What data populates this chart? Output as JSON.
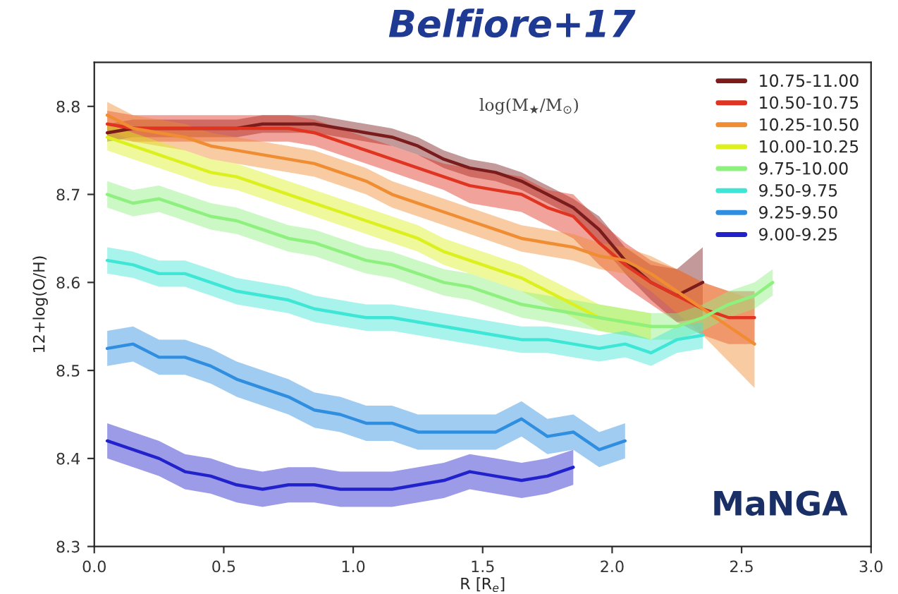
{
  "chart_data": {
    "type": "line",
    "title": "Belfiore+17",
    "xlabel": "R [R$_{e}$]",
    "ylabel": "12+log(O/H)",
    "legend_title": "log(M$_{★}$/M$_{⊙}$)",
    "xlim": [
      0,
      3
    ],
    "ylim": [
      8.3,
      8.85
    ],
    "xticks": [
      {
        "value": 0,
        "label": "0.0"
      },
      0.5,
      {
        "value": 1,
        "label": "1.0"
      },
      1.5,
      {
        "value": 2,
        "label": "2.0"
      },
      2.5,
      {
        "value": 3,
        "label": "3.0"
      }
    ],
    "yticks": [
      8.3,
      8.4,
      8.5,
      8.6,
      8.7,
      8.8
    ],
    "grid": false,
    "legend": "top right",
    "marker": "none",
    "line_style": "solid",
    "annotations": [
      "MaNGA"
    ],
    "series": [
      {
        "name": "10.75-11.00",
        "color": "#7a1c1c",
        "x": [
          0.05,
          0.15,
          0.25,
          0.35,
          0.45,
          0.55,
          0.65,
          0.75,
          0.85,
          0.95,
          1.05,
          1.15,
          1.25,
          1.35,
          1.45,
          1.55,
          1.65,
          1.75,
          1.85,
          1.95,
          2.05,
          2.15,
          2.25,
          2.35
        ],
        "values": [
          8.77,
          8.775,
          8.775,
          8.775,
          8.775,
          8.775,
          8.78,
          8.78,
          8.78,
          8.775,
          8.77,
          8.765,
          8.755,
          8.74,
          8.73,
          8.725,
          8.715,
          8.7,
          8.685,
          8.66,
          8.625,
          8.6,
          8.585,
          8.6
        ],
        "lower": [
          8.76,
          8.765,
          8.765,
          8.765,
          8.765,
          8.765,
          8.77,
          8.77,
          8.77,
          8.765,
          8.76,
          8.755,
          8.745,
          8.73,
          8.72,
          8.715,
          8.705,
          8.69,
          8.675,
          8.645,
          8.61,
          8.58,
          8.555,
          8.56
        ],
        "upper": [
          8.78,
          8.785,
          8.785,
          8.785,
          8.785,
          8.785,
          8.79,
          8.79,
          8.79,
          8.785,
          8.78,
          8.775,
          8.765,
          8.75,
          8.74,
          8.735,
          8.725,
          8.71,
          8.695,
          8.675,
          8.64,
          8.62,
          8.615,
          8.64
        ]
      },
      {
        "name": "10.50-10.75",
        "color": "#e03421",
        "x": [
          0.05,
          0.15,
          0.25,
          0.35,
          0.45,
          0.55,
          0.65,
          0.75,
          0.85,
          0.95,
          1.05,
          1.15,
          1.25,
          1.35,
          1.45,
          1.55,
          1.65,
          1.75,
          1.85,
          1.95,
          2.05,
          2.15,
          2.25,
          2.35,
          2.45,
          2.55
        ],
        "values": [
          8.78,
          8.775,
          8.775,
          8.775,
          8.775,
          8.775,
          8.775,
          8.775,
          8.77,
          8.76,
          8.75,
          8.74,
          8.73,
          8.72,
          8.71,
          8.705,
          8.7,
          8.685,
          8.675,
          8.645,
          8.62,
          8.6,
          8.585,
          8.57,
          8.56,
          8.56
        ],
        "lower": [
          8.765,
          8.76,
          8.76,
          8.76,
          8.76,
          8.76,
          8.76,
          8.76,
          8.755,
          8.745,
          8.735,
          8.725,
          8.715,
          8.705,
          8.69,
          8.685,
          8.68,
          8.665,
          8.65,
          8.62,
          8.595,
          8.575,
          8.555,
          8.54,
          8.53,
          8.53
        ],
        "upper": [
          8.795,
          8.79,
          8.79,
          8.79,
          8.79,
          8.79,
          8.79,
          8.79,
          8.785,
          8.775,
          8.765,
          8.755,
          8.745,
          8.735,
          8.73,
          8.725,
          8.72,
          8.705,
          8.7,
          8.67,
          8.645,
          8.625,
          8.615,
          8.6,
          8.59,
          8.59
        ]
      },
      {
        "name": "10.25-10.50",
        "color": "#f08c32",
        "x": [
          0.05,
          0.15,
          0.25,
          0.35,
          0.45,
          0.55,
          0.65,
          0.75,
          0.85,
          0.95,
          1.05,
          1.15,
          1.25,
          1.35,
          1.45,
          1.55,
          1.65,
          1.75,
          1.85,
          1.95,
          2.05,
          2.15,
          2.25,
          2.35,
          2.45,
          2.55
        ],
        "values": [
          8.79,
          8.775,
          8.77,
          8.765,
          8.755,
          8.75,
          8.745,
          8.74,
          8.735,
          8.725,
          8.715,
          8.7,
          8.69,
          8.68,
          8.67,
          8.66,
          8.65,
          8.645,
          8.64,
          8.63,
          8.625,
          8.61,
          8.59,
          8.57,
          8.55,
          8.53
        ],
        "lower": [
          8.775,
          8.76,
          8.755,
          8.75,
          8.74,
          8.735,
          8.73,
          8.725,
          8.72,
          8.71,
          8.7,
          8.685,
          8.675,
          8.665,
          8.655,
          8.645,
          8.635,
          8.63,
          8.625,
          8.615,
          8.61,
          8.59,
          8.565,
          8.54,
          8.51,
          8.48
        ],
        "upper": [
          8.805,
          8.79,
          8.785,
          8.78,
          8.77,
          8.765,
          8.76,
          8.755,
          8.75,
          8.74,
          8.73,
          8.715,
          8.705,
          8.695,
          8.685,
          8.675,
          8.665,
          8.66,
          8.655,
          8.645,
          8.64,
          8.63,
          8.615,
          8.6,
          8.59,
          8.58
        ]
      },
      {
        "name": "10.00-10.25",
        "color": "#dcf01e",
        "x": [
          0.05,
          0.15,
          0.25,
          0.35,
          0.45,
          0.55,
          0.65,
          0.75,
          0.85,
          0.95,
          1.05,
          1.15,
          1.25,
          1.35,
          1.45,
          1.55,
          1.65,
          1.75,
          1.85,
          1.95,
          2.05,
          2.15
        ],
        "values": [
          8.765,
          8.755,
          8.745,
          8.735,
          8.725,
          8.72,
          8.71,
          8.7,
          8.69,
          8.68,
          8.67,
          8.66,
          8.65,
          8.635,
          8.625,
          8.615,
          8.605,
          8.59,
          8.575,
          8.56,
          8.555,
          8.55
        ],
        "lower": [
          8.75,
          8.74,
          8.73,
          8.72,
          8.71,
          8.705,
          8.695,
          8.685,
          8.675,
          8.665,
          8.655,
          8.645,
          8.635,
          8.62,
          8.61,
          8.6,
          8.59,
          8.575,
          8.56,
          8.545,
          8.54,
          8.535
        ],
        "upper": [
          8.78,
          8.77,
          8.76,
          8.75,
          8.74,
          8.735,
          8.725,
          8.715,
          8.705,
          8.695,
          8.685,
          8.675,
          8.665,
          8.65,
          8.64,
          8.63,
          8.62,
          8.605,
          8.59,
          8.575,
          8.57,
          8.565
        ]
      },
      {
        "name": "9.75-10.00",
        "color": "#8ef07e",
        "x": [
          0.05,
          0.15,
          0.25,
          0.35,
          0.45,
          0.55,
          0.65,
          0.75,
          0.85,
          0.95,
          1.05,
          1.15,
          1.25,
          1.35,
          1.45,
          1.55,
          1.65,
          1.75,
          1.85,
          1.95,
          2.05,
          2.15,
          2.25,
          2.35,
          2.45,
          2.55,
          2.62
        ],
        "values": [
          8.7,
          8.69,
          8.695,
          8.685,
          8.675,
          8.67,
          8.66,
          8.65,
          8.645,
          8.635,
          8.625,
          8.62,
          8.61,
          8.6,
          8.595,
          8.585,
          8.575,
          8.57,
          8.565,
          8.56,
          8.555,
          8.55,
          8.55,
          8.56,
          8.575,
          8.585,
          8.6
        ],
        "lower": [
          8.685,
          8.675,
          8.68,
          8.67,
          8.66,
          8.655,
          8.645,
          8.635,
          8.63,
          8.62,
          8.61,
          8.605,
          8.595,
          8.585,
          8.58,
          8.57,
          8.56,
          8.555,
          8.55,
          8.545,
          8.54,
          8.535,
          8.535,
          8.545,
          8.56,
          8.57,
          8.585
        ],
        "upper": [
          8.715,
          8.705,
          8.71,
          8.7,
          8.69,
          8.685,
          8.675,
          8.665,
          8.66,
          8.65,
          8.64,
          8.635,
          8.625,
          8.615,
          8.61,
          8.6,
          8.59,
          8.585,
          8.58,
          8.575,
          8.57,
          8.565,
          8.565,
          8.575,
          8.59,
          8.6,
          8.615
        ]
      },
      {
        "name": "9.50-9.75",
        "color": "#3ee6d6",
        "x": [
          0.05,
          0.15,
          0.25,
          0.35,
          0.45,
          0.55,
          0.65,
          0.75,
          0.85,
          0.95,
          1.05,
          1.15,
          1.25,
          1.35,
          1.45,
          1.55,
          1.65,
          1.75,
          1.85,
          1.95,
          2.05,
          2.15,
          2.25,
          2.35
        ],
        "values": [
          8.625,
          8.62,
          8.61,
          8.61,
          8.6,
          8.59,
          8.585,
          8.58,
          8.57,
          8.565,
          8.56,
          8.56,
          8.555,
          8.55,
          8.545,
          8.54,
          8.535,
          8.535,
          8.53,
          8.525,
          8.53,
          8.52,
          8.535,
          8.54
        ],
        "lower": [
          8.61,
          8.605,
          8.595,
          8.595,
          8.585,
          8.575,
          8.57,
          8.565,
          8.555,
          8.55,
          8.545,
          8.545,
          8.54,
          8.535,
          8.53,
          8.525,
          8.52,
          8.52,
          8.515,
          8.51,
          8.515,
          8.505,
          8.52,
          8.525
        ],
        "upper": [
          8.64,
          8.635,
          8.625,
          8.625,
          8.615,
          8.605,
          8.6,
          8.595,
          8.585,
          8.58,
          8.575,
          8.575,
          8.57,
          8.565,
          8.56,
          8.555,
          8.55,
          8.55,
          8.545,
          8.54,
          8.545,
          8.535,
          8.55,
          8.555
        ]
      },
      {
        "name": "9.25-9.50",
        "color": "#2f8ee0",
        "x": [
          0.05,
          0.15,
          0.25,
          0.35,
          0.45,
          0.55,
          0.65,
          0.75,
          0.85,
          0.95,
          1.05,
          1.15,
          1.25,
          1.35,
          1.45,
          1.55,
          1.65,
          1.75,
          1.85,
          1.95,
          2.05
        ],
        "values": [
          8.525,
          8.53,
          8.515,
          8.515,
          8.505,
          8.49,
          8.48,
          8.47,
          8.455,
          8.45,
          8.44,
          8.44,
          8.43,
          8.43,
          8.43,
          8.43,
          8.445,
          8.425,
          8.43,
          8.41,
          8.42
        ],
        "lower": [
          8.505,
          8.51,
          8.495,
          8.495,
          8.485,
          8.47,
          8.46,
          8.45,
          8.435,
          8.43,
          8.42,
          8.42,
          8.41,
          8.41,
          8.41,
          8.41,
          8.425,
          8.405,
          8.41,
          8.39,
          8.4
        ],
        "upper": [
          8.545,
          8.55,
          8.535,
          8.535,
          8.525,
          8.51,
          8.5,
          8.49,
          8.475,
          8.47,
          8.46,
          8.46,
          8.45,
          8.45,
          8.45,
          8.45,
          8.465,
          8.445,
          8.45,
          8.43,
          8.44
        ]
      },
      {
        "name": "9.00-9.25",
        "color": "#2222cc",
        "x": [
          0.05,
          0.15,
          0.25,
          0.35,
          0.45,
          0.55,
          0.65,
          0.75,
          0.85,
          0.95,
          1.05,
          1.15,
          1.25,
          1.35,
          1.45,
          1.55,
          1.65,
          1.75,
          1.85
        ],
        "values": [
          8.42,
          8.41,
          8.4,
          8.385,
          8.38,
          8.37,
          8.365,
          8.37,
          8.37,
          8.365,
          8.365,
          8.365,
          8.37,
          8.375,
          8.385,
          8.38,
          8.375,
          8.38,
          8.39
        ],
        "lower": [
          8.4,
          8.39,
          8.38,
          8.365,
          8.36,
          8.35,
          8.345,
          8.35,
          8.35,
          8.345,
          8.345,
          8.345,
          8.35,
          8.355,
          8.365,
          8.36,
          8.355,
          8.36,
          8.37
        ],
        "upper": [
          8.44,
          8.43,
          8.42,
          8.405,
          8.4,
          8.39,
          8.385,
          8.39,
          8.39,
          8.385,
          8.385,
          8.385,
          8.39,
          8.395,
          8.405,
          8.4,
          8.395,
          8.4,
          8.41
        ]
      }
    ]
  }
}
